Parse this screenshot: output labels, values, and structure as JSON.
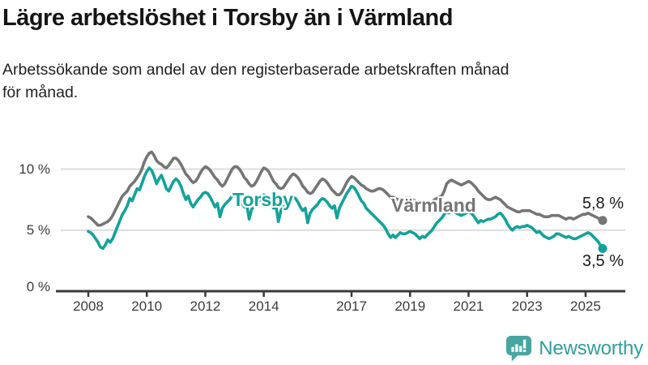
{
  "header": {
    "title": "Lägre arbetslöshet i Torsby än i Värmland",
    "subtitle": "Arbetssökande som andel av den registerbaserade arbetskraften månad\nför månad."
  },
  "chart_data": {
    "type": "line",
    "title": "Lägre arbetslöshet i Torsby än i Värmland",
    "x_range": {
      "start": "2008-01",
      "end": "2025-08",
      "interval": "monthly"
    },
    "x_ticks": [
      {
        "label": "2008",
        "year": 2008
      },
      {
        "label": "2010",
        "year": 2010
      },
      {
        "label": "2012",
        "year": 2012
      },
      {
        "label": "2014",
        "year": 2014
      },
      {
        "label": "2017",
        "year": 2017
      },
      {
        "label": "2019",
        "year": 2019
      },
      {
        "label": "2021",
        "year": 2021
      },
      {
        "label": "2023",
        "year": 2023
      },
      {
        "label": "2025",
        "year": 2025
      }
    ],
    "y_ticks": [
      {
        "value": 0,
        "label": "0 %"
      },
      {
        "value": 5,
        "label": "5 %"
      },
      {
        "value": 10,
        "label": "10 %"
      }
    ],
    "ylim": [
      0,
      12
    ],
    "grid": "horizontal",
    "colors": {
      "grid": "#dcdcdc",
      "axis": "#3a3a3a"
    },
    "series": [
      {
        "name": "Torsby",
        "color": "#13A29A",
        "end_label": "3,5 %",
        "end_value": 3.5,
        "values": [
          4.9,
          4.8,
          4.6,
          4.3,
          4.0,
          3.6,
          3.5,
          3.8,
          4.2,
          4.0,
          4.3,
          4.8,
          5.3,
          5.8,
          6.3,
          6.6,
          7.0,
          7.6,
          7.4,
          7.9,
          8.4,
          8.3,
          8.8,
          9.4,
          9.8,
          10.1,
          9.9,
          9.4,
          8.8,
          9.2,
          9.5,
          9.0,
          8.4,
          8.2,
          8.6,
          9.0,
          9.2,
          9.0,
          8.6,
          8.0,
          7.5,
          7.8,
          7.2,
          6.9,
          7.2,
          7.5,
          7.7,
          8.0,
          8.1,
          8.0,
          7.7,
          7.3,
          6.9,
          7.2,
          6.1,
          6.8,
          7.1,
          7.3,
          7.5,
          7.8,
          8.0,
          7.9,
          7.6,
          7.2,
          6.9,
          7.1,
          5.9,
          6.7,
          7.0,
          7.2,
          7.4,
          7.7,
          7.9,
          7.8,
          7.5,
          7.1,
          6.8,
          7.0,
          5.7,
          6.6,
          6.9,
          7.1,
          7.3,
          7.5,
          7.7,
          7.6,
          7.3,
          6.9,
          6.6,
          6.8,
          5.6,
          6.4,
          6.7,
          6.9,
          7.1,
          7.4,
          7.6,
          7.5,
          7.3,
          7.0,
          6.8,
          7.0,
          6.0,
          6.8,
          7.2,
          7.6,
          8.0,
          8.3,
          8.6,
          8.5,
          8.2,
          7.8,
          7.4,
          7.2,
          6.8,
          6.6,
          6.4,
          6.2,
          6.0,
          5.8,
          5.6,
          5.4,
          5.1,
          4.7,
          4.4,
          4.6,
          4.4,
          4.6,
          4.8,
          4.7,
          4.7,
          4.8,
          4.9,
          4.8,
          4.7,
          4.5,
          4.3,
          4.5,
          4.4,
          4.6,
          4.8,
          5.0,
          5.3,
          5.6,
          5.8,
          6.0,
          6.3,
          6.5,
          6.4,
          6.6,
          6.5,
          6.4,
          6.3,
          6.2,
          6.3,
          6.4,
          6.5,
          6.4,
          6.2,
          5.9,
          5.6,
          5.8,
          5.7,
          5.8,
          5.9,
          5.9,
          6.0,
          6.1,
          6.3,
          6.4,
          6.2,
          5.9,
          5.5,
          5.2,
          5.0,
          5.2,
          5.3,
          5.2,
          5.3,
          5.3,
          5.4,
          5.3,
          5.2,
          5.0,
          4.8,
          4.9,
          4.7,
          4.5,
          4.4,
          4.3,
          4.4,
          4.5,
          4.7,
          4.7,
          4.6,
          4.5,
          4.4,
          4.5,
          4.4,
          4.3,
          4.3,
          4.4,
          4.5,
          4.6,
          4.7,
          4.8,
          4.7,
          4.5,
          4.3,
          4.1,
          3.8,
          3.5
        ]
      },
      {
        "name": "Värmland",
        "color": "#757575",
        "end_label": "5,8 %",
        "end_value": 5.8,
        "values": [
          6.1,
          6.0,
          5.8,
          5.6,
          5.4,
          5.4,
          5.5,
          5.6,
          5.7,
          5.9,
          6.2,
          6.6,
          7.0,
          7.4,
          7.8,
          8.0,
          8.2,
          8.6,
          8.8,
          9.0,
          9.3,
          9.6,
          10.0,
          10.6,
          11.0,
          11.3,
          11.4,
          11.1,
          10.7,
          10.5,
          10.4,
          10.2,
          10.1,
          10.3,
          10.6,
          10.9,
          10.9,
          10.7,
          10.4,
          10.0,
          9.6,
          9.4,
          9.1,
          8.9,
          9.0,
          9.3,
          9.7,
          10.0,
          10.2,
          10.1,
          9.9,
          9.6,
          9.3,
          9.1,
          8.8,
          8.6,
          8.8,
          9.2,
          9.6,
          10.0,
          10.2,
          10.2,
          10.0,
          9.7,
          9.3,
          9.1,
          8.8,
          8.6,
          8.7,
          9.0,
          9.4,
          9.8,
          10.1,
          10.0,
          9.8,
          9.4,
          9.0,
          8.8,
          8.5,
          8.4,
          8.5,
          8.8,
          9.1,
          9.4,
          9.6,
          9.5,
          9.3,
          9.0,
          8.6,
          8.4,
          8.1,
          8.0,
          8.1,
          8.4,
          8.7,
          9.0,
          9.2,
          9.1,
          8.9,
          8.6,
          8.3,
          8.1,
          7.9,
          7.9,
          8.1,
          8.5,
          8.9,
          9.2,
          9.4,
          9.3,
          9.1,
          8.9,
          8.7,
          8.6,
          8.4,
          8.3,
          8.2,
          8.2,
          8.3,
          8.4,
          8.4,
          8.3,
          8.1,
          7.9,
          7.7,
          7.7,
          7.6,
          7.5,
          7.5,
          7.5,
          7.6,
          7.6,
          7.6,
          7.5,
          7.4,
          7.3,
          7.2,
          7.3,
          7.3,
          7.2,
          7.2,
          7.3,
          7.5,
          7.6,
          7.7,
          7.8,
          8.2,
          8.8,
          9.0,
          9.1,
          9.0,
          8.9,
          8.8,
          8.7,
          8.8,
          8.9,
          9.0,
          8.9,
          8.7,
          8.5,
          8.2,
          8.0,
          7.8,
          7.6,
          7.5,
          7.5,
          7.6,
          7.7,
          7.6,
          7.5,
          7.3,
          7.1,
          6.9,
          6.8,
          6.7,
          6.6,
          6.5,
          6.5,
          6.6,
          6.6,
          6.6,
          6.6,
          6.5,
          6.4,
          6.3,
          6.3,
          6.2,
          6.1,
          6.1,
          6.1,
          6.2,
          6.2,
          6.2,
          6.2,
          6.1,
          6.0,
          5.9,
          6.0,
          6.0,
          5.9,
          6.0,
          6.1,
          6.2,
          6.3,
          6.3,
          6.4,
          6.3,
          6.2,
          6.1,
          6.0,
          5.9,
          5.8
        ]
      }
    ]
  },
  "footer": {
    "brand": "Newsworthy",
    "brand_color": "#2E9F9C",
    "logo_color": "#48A5A1"
  }
}
